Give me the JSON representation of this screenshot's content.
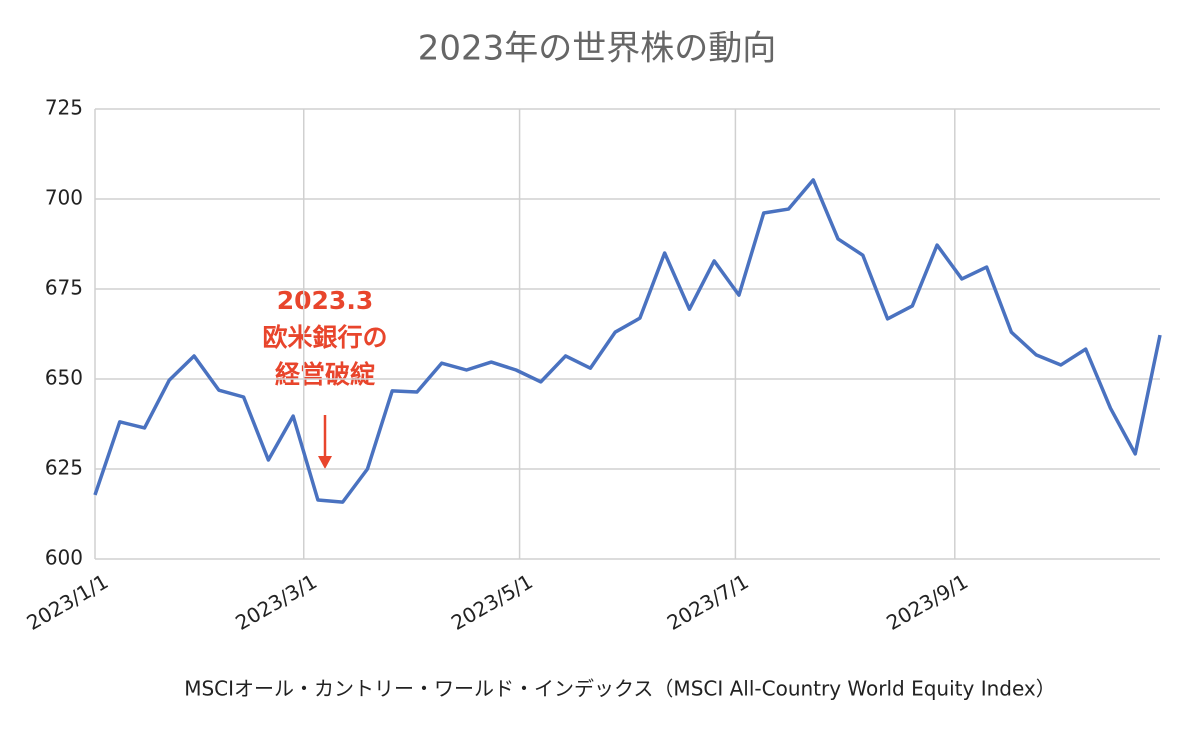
{
  "chart_data": {
    "type": "line",
    "title": "2023年の世界株の動向",
    "x_label": "MSCIオール・カントリー・ワールド・インデックス（MSCI All-Country World Equity Index）",
    "annotation": {
      "lines": [
        "2023.3",
        "欧米銀行の",
        "経営破綻"
      ],
      "color": "#e8452c"
    },
    "x": [
      "2023-01-01",
      "2023-01-08",
      "2023-01-15",
      "2023-01-22",
      "2023-01-29",
      "2023-02-05",
      "2023-02-12",
      "2023-02-19",
      "2023-02-26",
      "2023-03-05",
      "2023-03-12",
      "2023-03-19",
      "2023-03-26",
      "2023-04-02",
      "2023-04-09",
      "2023-04-16",
      "2023-04-23",
      "2023-04-30",
      "2023-05-07",
      "2023-05-14",
      "2023-05-21",
      "2023-05-28",
      "2023-06-04",
      "2023-06-11",
      "2023-06-18",
      "2023-06-25",
      "2023-07-02",
      "2023-07-09",
      "2023-07-16",
      "2023-07-23",
      "2023-07-30",
      "2023-08-06",
      "2023-08-13",
      "2023-08-20",
      "2023-08-27",
      "2023-09-03",
      "2023-09-10",
      "2023-09-17",
      "2023-09-24",
      "2023-10-01",
      "2023-10-08",
      "2023-10-15",
      "2023-10-22",
      "2023-10-29"
    ],
    "series": [
      {
        "color": "#4a72c0",
        "values": [
          617.8,
          638.1,
          636.4,
          649.7,
          656.4,
          646.9,
          645,
          627.5,
          639.7,
          616.4,
          615.8,
          625,
          646.7,
          646.4,
          654.4,
          652.5,
          654.7,
          652.5,
          649.2,
          656.4,
          653,
          663,
          666.9,
          685,
          669.4,
          682.8,
          673.3,
          696.1,
          697.2,
          705.3,
          688.9,
          684.4,
          666.7,
          670.3,
          687.2,
          677.8,
          681.1,
          663,
          656.7,
          653.9,
          658.3,
          641.9,
          629.2,
          662.2
        ]
      }
    ],
    "xlim": [
      "2023-01-01",
      "2023-10-29"
    ],
    "xticks": [
      {
        "value": "2023-01-01",
        "label": "2023/1/1"
      },
      {
        "value": "2023-03-01",
        "label": "2023/3/1"
      },
      {
        "value": "2023-05-01",
        "label": "2023/5/1"
      },
      {
        "value": "2023-07-01",
        "label": "2023/7/1"
      },
      {
        "value": "2023-09-01",
        "label": "2023/9/1"
      }
    ],
    "ylim": [
      600,
      725
    ],
    "yticks": [
      600,
      625,
      650,
      675,
      700,
      725
    ],
    "grid": true
  }
}
